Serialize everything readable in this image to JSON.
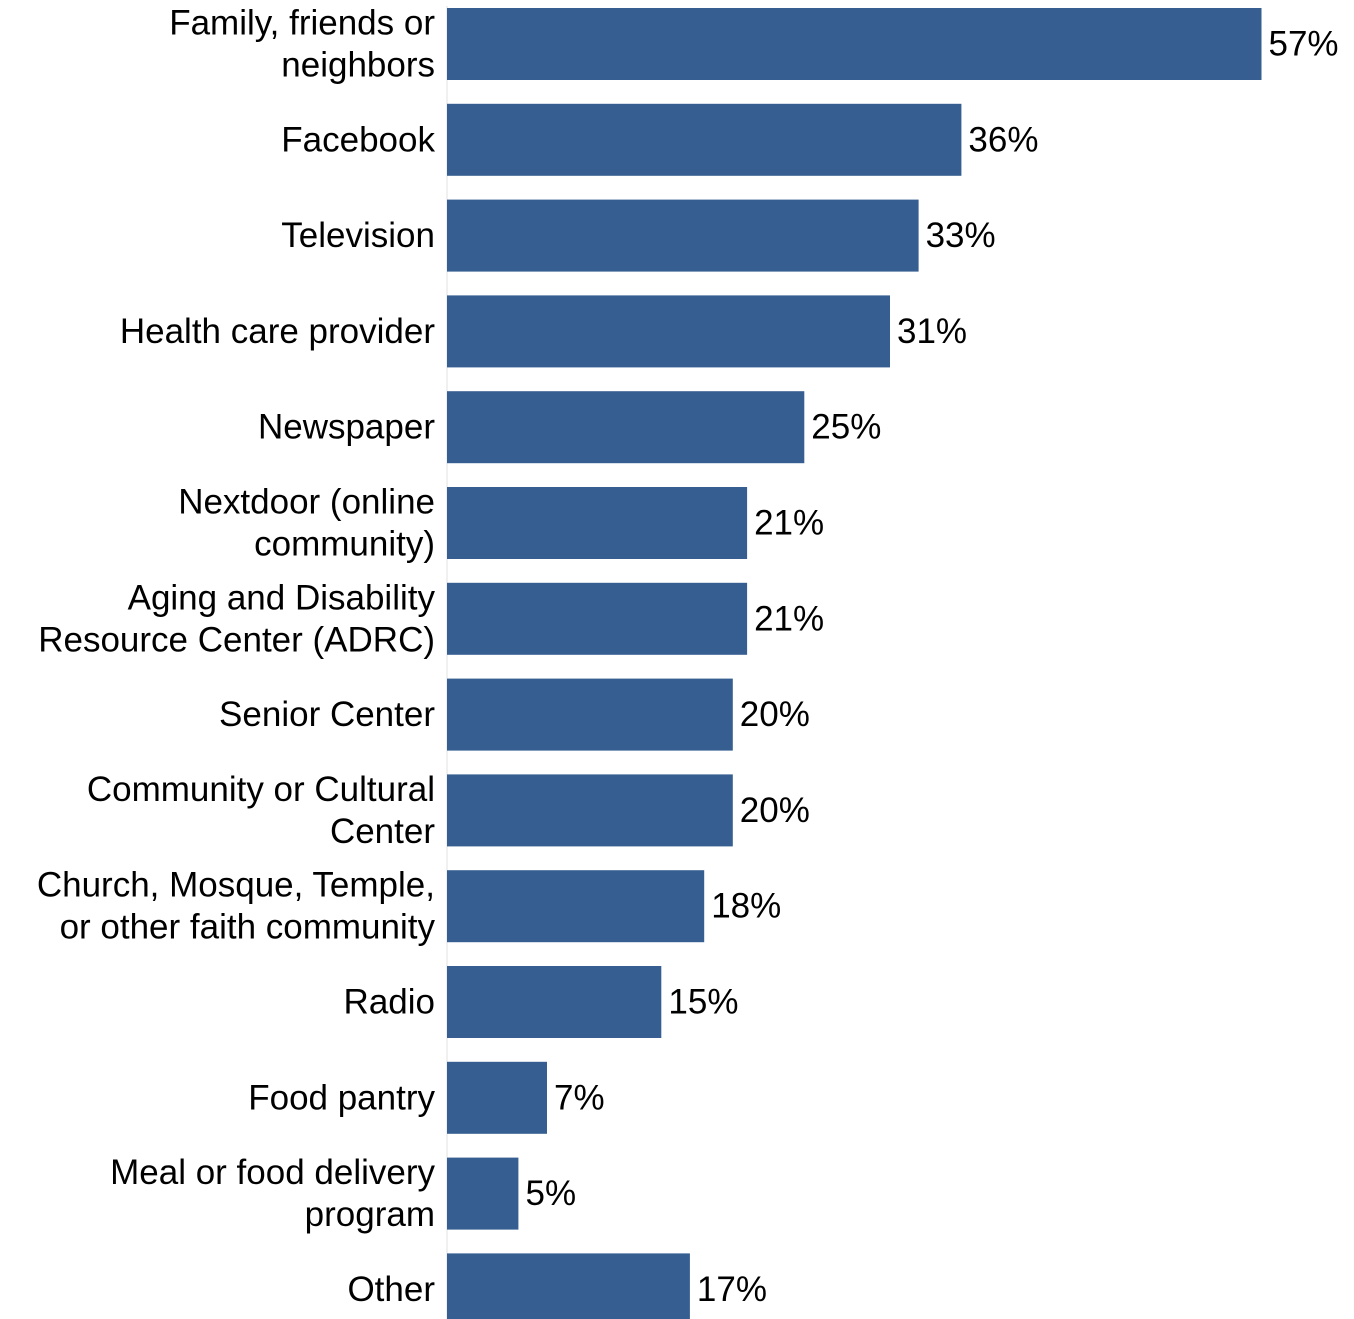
{
  "chart_data": {
    "type": "bar",
    "orientation": "horizontal",
    "categories": [
      [
        "Family, friends or",
        "neighbors"
      ],
      [
        "Facebook"
      ],
      [
        "Television"
      ],
      [
        "Health care provider"
      ],
      [
        "Newspaper"
      ],
      [
        "Nextdoor (online",
        "community)"
      ],
      [
        "Aging and Disability",
        "Resource Center (ADRC)"
      ],
      [
        "Senior Center"
      ],
      [
        "Community or Cultural",
        "Center"
      ],
      [
        "Church, Mosque, Temple,",
        "or other faith community"
      ],
      [
        "Radio"
      ],
      [
        "Food pantry"
      ],
      [
        "Meal or food delivery",
        "program"
      ],
      [
        "Other"
      ]
    ],
    "values": [
      57,
      36,
      33,
      31,
      25,
      21,
      21,
      20,
      20,
      18,
      15,
      7,
      5,
      17
    ],
    "value_labels": [
      "57%",
      "36%",
      "33%",
      "31%",
      "25%",
      "21%",
      "21%",
      "20%",
      "20%",
      "18%",
      "15%",
      "7%",
      "5%",
      "17%"
    ],
    "unit": "%",
    "xlim": [
      0,
      57
    ],
    "bar_color": "#365e91",
    "grid": false,
    "legend": "none"
  }
}
